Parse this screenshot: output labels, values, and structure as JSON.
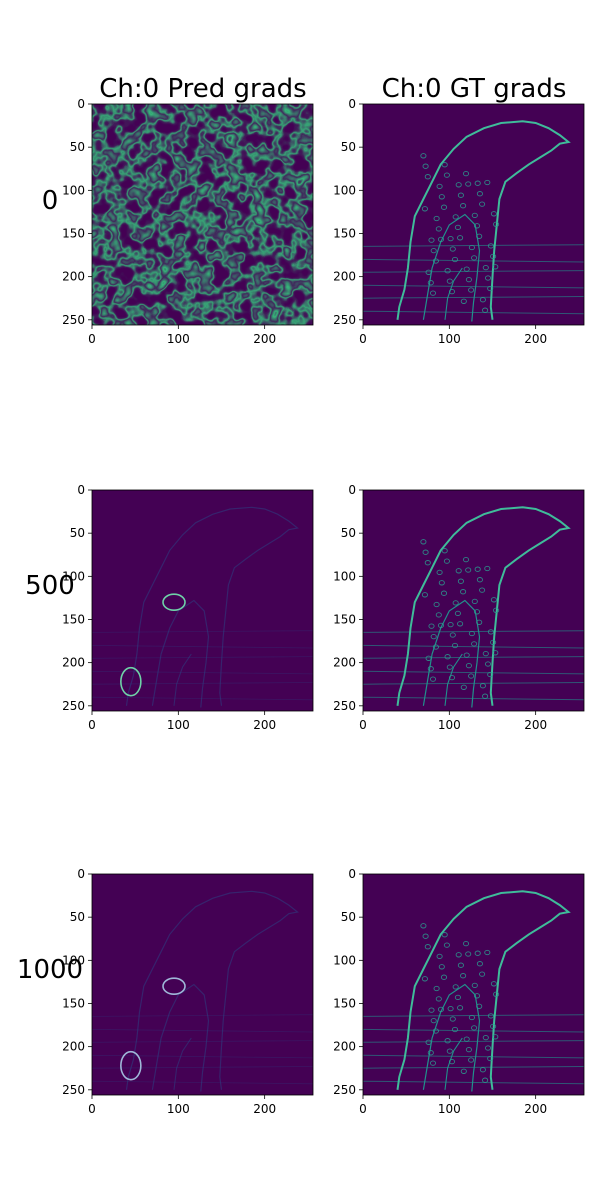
{
  "figure": {
    "column_titles": [
      "Ch:0 Pred grads",
      "Ch:0 GT grads"
    ],
    "row_labels": [
      "0",
      "500",
      "1000"
    ]
  },
  "colors": {
    "background": "#ffffff",
    "viridis_dark": "#440154",
    "viridis_mid": "#21918c",
    "viridis_bright": "#fde725",
    "axis": "#000000"
  },
  "chart_data": [
    {
      "type": "heatmap",
      "title": "Ch:0 Pred grads",
      "row_label": "0",
      "x_ticks": [
        0,
        100,
        200
      ],
      "y_ticks": [
        0,
        50,
        100,
        150,
        200,
        250
      ],
      "xlim": [
        0,
        256
      ],
      "ylim": [
        256,
        0
      ],
      "colormap": "viridis",
      "content": "noise"
    },
    {
      "type": "heatmap",
      "title": "Ch:0 GT grads",
      "row_label": "0",
      "x_ticks": [
        0,
        100,
        200
      ],
      "y_ticks": [
        0,
        50,
        100,
        150,
        200,
        250
      ],
      "xlim": [
        0,
        256
      ],
      "ylim": [
        256,
        0
      ],
      "colormap": "viridis",
      "content": "cheetah-edges"
    },
    {
      "type": "heatmap",
      "title": "",
      "row_label": "500",
      "x_ticks": [
        0,
        100,
        200
      ],
      "y_ticks": [
        0,
        50,
        100,
        150,
        200,
        250
      ],
      "xlim": [
        0,
        256
      ],
      "ylim": [
        256,
        0
      ],
      "colormap": "viridis",
      "content": "faint-edges-with-rings"
    },
    {
      "type": "heatmap",
      "title": "",
      "row_label": "500",
      "x_ticks": [
        0,
        100,
        200
      ],
      "y_ticks": [
        0,
        50,
        100,
        150,
        200,
        250
      ],
      "xlim": [
        0,
        256
      ],
      "ylim": [
        256,
        0
      ],
      "colormap": "viridis",
      "content": "cheetah-edges"
    },
    {
      "type": "heatmap",
      "title": "",
      "row_label": "1000",
      "x_ticks": [
        0,
        100,
        200
      ],
      "y_ticks": [
        0,
        50,
        100,
        150,
        200,
        250
      ],
      "xlim": [
        0,
        256
      ],
      "ylim": [
        256,
        0
      ],
      "colormap": "viridis",
      "content": "faint-edges-with-rings"
    },
    {
      "type": "heatmap",
      "title": "",
      "row_label": "1000",
      "x_ticks": [
        0,
        100,
        200
      ],
      "y_ticks": [
        0,
        50,
        100,
        150,
        200,
        250
      ],
      "xlim": [
        0,
        256
      ],
      "ylim": [
        256,
        0
      ],
      "colormap": "viridis",
      "content": "cheetah-edges"
    }
  ]
}
